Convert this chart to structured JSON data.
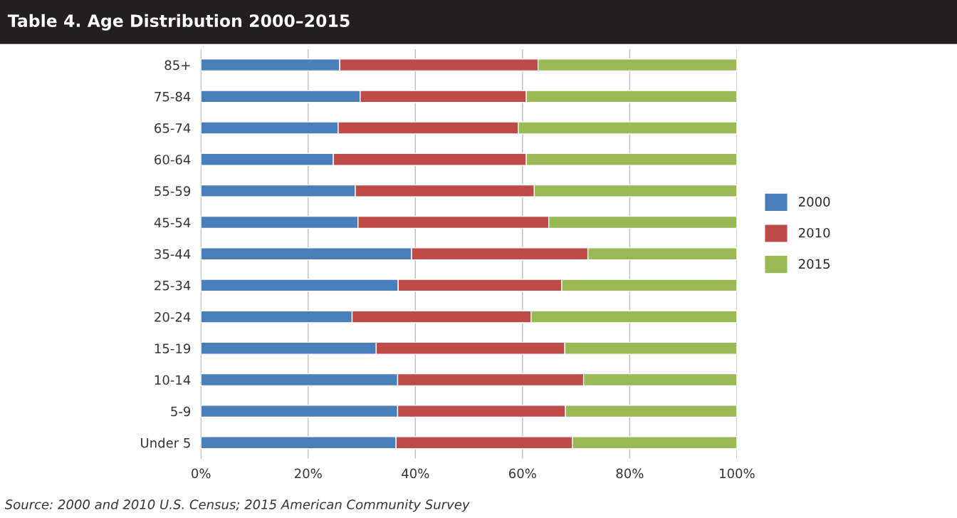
{
  "chart_data": {
    "type": "bar",
    "orientation": "horizontal",
    "stacked": true,
    "title": "Table 4. Age Distribution 2000–2015",
    "categories": [
      "85+",
      "75-84",
      "65-74",
      "60-64",
      "55-59",
      "45-54",
      "35-44",
      "25-34",
      "20-24",
      "15-19",
      "10-14",
      "5-9",
      "Under 5"
    ],
    "series": [
      {
        "name": "2000",
        "color": "#4a7ebb",
        "values": [
          25.9,
          29.7,
          25.6,
          24.7,
          28.8,
          29.3,
          39.3,
          36.8,
          28.2,
          32.7,
          36.7,
          36.7,
          36.4
        ]
      },
      {
        "name": "2010",
        "color": "#be4b48",
        "values": [
          37.0,
          31.0,
          33.6,
          36.0,
          33.4,
          35.6,
          32.9,
          30.5,
          33.4,
          35.2,
          34.7,
          31.3,
          32.9
        ]
      },
      {
        "name": "2015",
        "color": "#98b954",
        "values": [
          37.1,
          39.3,
          40.8,
          39.3,
          37.8,
          35.1,
          27.8,
          32.7,
          38.4,
          32.1,
          28.6,
          32.0,
          30.7
        ]
      }
    ],
    "xlim": [
      0,
      100
    ],
    "xticks": [
      {
        "value": 0,
        "label": "0%"
      },
      {
        "value": 20,
        "label": "20%"
      },
      {
        "value": 40,
        "label": "40%"
      },
      {
        "value": 60,
        "label": "60%"
      },
      {
        "value": 80,
        "label": "80%"
      },
      {
        "value": 100,
        "label": "100%"
      }
    ],
    "grid": "x",
    "legend": "right",
    "annotations": [
      "Source: 2000 and 2010 U.S. Census; 2015 American Community Survey"
    ]
  }
}
